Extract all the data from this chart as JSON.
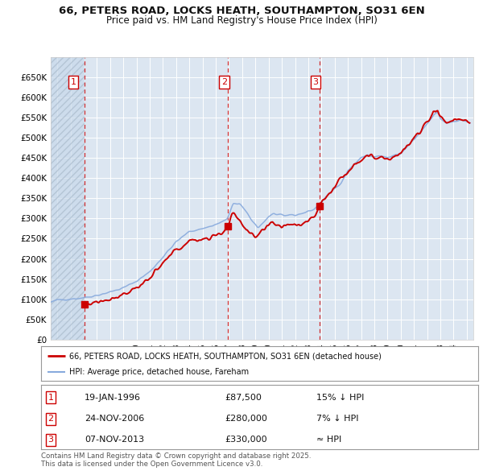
{
  "title_line1": "66, PETERS ROAD, LOCKS HEATH, SOUTHAMPTON, SO31 6EN",
  "title_line2": "Price paid vs. HM Land Registry's House Price Index (HPI)",
  "property_label": "66, PETERS ROAD, LOCKS HEATH, SOUTHAMPTON, SO31 6EN (detached house)",
  "hpi_label": "HPI: Average price, detached house, Fareham",
  "transactions": [
    {
      "num": 1,
      "date": "19-JAN-1996",
      "price": 87500,
      "note": "15% ↓ HPI"
    },
    {
      "num": 2,
      "date": "24-NOV-2006",
      "price": 280000,
      "note": "7% ↓ HPI"
    },
    {
      "num": 3,
      "date": "07-NOV-2013",
      "price": 330000,
      "note": "≈ HPI"
    }
  ],
  "transaction_dates_decimal": [
    1996.05,
    2006.9,
    2013.85
  ],
  "transaction_prices": [
    87500,
    280000,
    330000
  ],
  "vline_dates": [
    1996.05,
    2006.9,
    2013.85
  ],
  "ylim": [
    0,
    700000
  ],
  "yticks": [
    0,
    50000,
    100000,
    150000,
    200000,
    250000,
    300000,
    350000,
    400000,
    450000,
    500000,
    550000,
    600000,
    650000
  ],
  "ytick_labels": [
    "£0",
    "£50K",
    "£100K",
    "£150K",
    "£200K",
    "£250K",
    "£300K",
    "£350K",
    "£400K",
    "£450K",
    "£500K",
    "£550K",
    "£600K",
    "£650K"
  ],
  "xlim_start": 1993.5,
  "xlim_end": 2025.5,
  "property_color": "#cc0000",
  "hpi_color": "#88aadd",
  "vline_color": "#cc0000",
  "background_color": "#dce6f1",
  "grid_color": "#ffffff",
  "footer_text": "Contains HM Land Registry data © Crown copyright and database right 2025.\nThis data is licensed under the Open Government Licence v3.0.",
  "marker_color": "#cc0000",
  "hatch_color": "#bbccdd"
}
